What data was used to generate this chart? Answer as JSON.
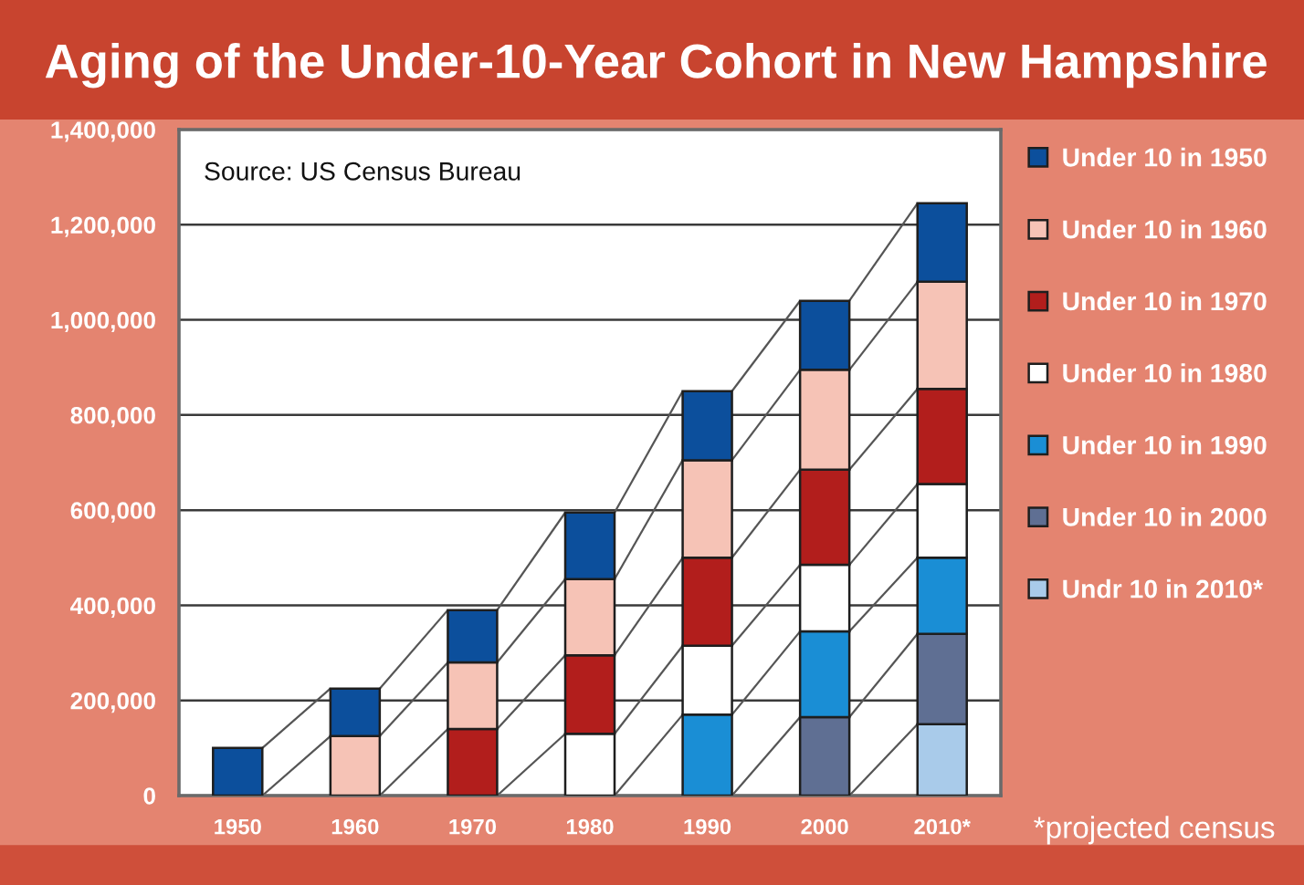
{
  "chart_data": {
    "type": "bar",
    "title": "Aging of the Under-10-Year Cohort in New Hampshire",
    "categories": [
      "1950",
      "1960",
      "1970",
      "1980",
      "1990",
      "2000",
      "2010*"
    ],
    "stacked": true,
    "series": [
      {
        "name": "Undr 10 in 2010*",
        "color": "#a9cbea",
        "values": [
          null,
          null,
          null,
          null,
          null,
          null,
          150000
        ]
      },
      {
        "name": "Under 10 in 2000",
        "color": "#5f6f93",
        "values": [
          null,
          null,
          null,
          null,
          null,
          165000,
          190000
        ]
      },
      {
        "name": "Under 10 in 1990",
        "color": "#1a8ed5",
        "values": [
          null,
          null,
          null,
          null,
          170000,
          180000,
          160000
        ]
      },
      {
        "name": "Under 10 in 1980",
        "color": "#ffffff",
        "values": [
          null,
          null,
          null,
          130000,
          145000,
          140000,
          155000
        ]
      },
      {
        "name": "Under 10 in 1970",
        "color": "#b21e1c",
        "values": [
          null,
          null,
          140000,
          165000,
          185000,
          200000,
          200000
        ]
      },
      {
        "name": "Under 10 in 1960",
        "color": "#f6c3b6",
        "values": [
          null,
          125000,
          140000,
          160000,
          205000,
          210000,
          225000
        ]
      },
      {
        "name": "Under 10 in 1950",
        "color": "#0c4f9c",
        "values": [
          100000,
          100000,
          110000,
          140000,
          145000,
          145000,
          165000
        ]
      }
    ],
    "ylim": [
      0,
      1400000
    ],
    "yticks": [
      0,
      {
        "value": 200000,
        "label": "200,000"
      },
      {
        "value": 400000,
        "label": "400,000"
      },
      {
        "value": 600000,
        "label": "600,000"
      },
      {
        "value": 800000,
        "label": "800,000"
      },
      {
        "value": 1000000,
        "label": "1,000,000"
      },
      {
        "value": 1200000,
        "label": "1,200,000"
      },
      {
        "value": 1400000,
        "label": "1,400,000"
      }
    ],
    "grid": "y",
    "legend": "right",
    "annotations": [
      "Source: US Census Bureau",
      "*projected census"
    ]
  }
}
